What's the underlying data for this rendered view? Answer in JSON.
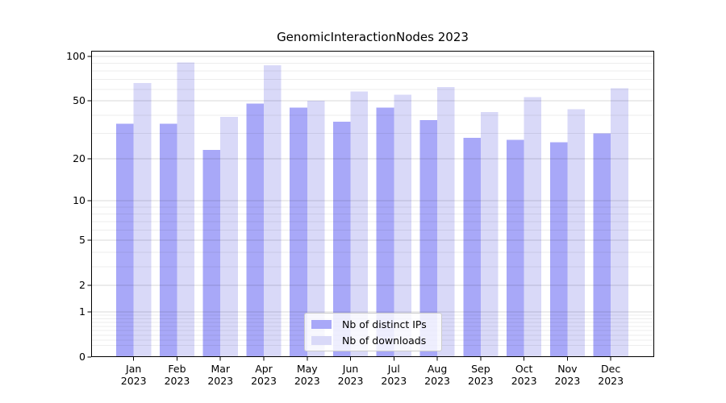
{
  "chart_data": {
    "type": "bar",
    "title": "GenomicInteractionNodes 2023",
    "year_label": "2023",
    "categories": [
      "Jan",
      "Feb",
      "Mar",
      "Apr",
      "May",
      "Jun",
      "Jul",
      "Aug",
      "Sep",
      "Oct",
      "Nov",
      "Dec"
    ],
    "series": [
      {
        "name": "Nb of distinct IPs",
        "color": "#a8a8f8",
        "values": [
          35,
          35,
          23,
          48,
          45,
          36,
          45,
          37,
          28,
          27,
          26,
          30
        ]
      },
      {
        "name": "Nb of downloads",
        "color": "#d9d9f8",
        "values": [
          66,
          91,
          39,
          87,
          50,
          58,
          55,
          62,
          42,
          53,
          44,
          61
        ]
      }
    ],
    "y_scale": "log1p",
    "ylim": [
      0,
      109
    ],
    "y_ticks": [
      0,
      1,
      2,
      5,
      10,
      20,
      50,
      100
    ],
    "y_minor_ticks": [
      0.2,
      0.3,
      0.4,
      0.5,
      0.6,
      0.7,
      0.8,
      0.9,
      3,
      4,
      6,
      7,
      8,
      9,
      30,
      40,
      60,
      70,
      80,
      90
    ],
    "grid": true,
    "grid_major_color": "rgba(0,0,0,0.15)",
    "grid_minor_color": "rgba(0,0,0,0.07)",
    "axis_color": "#000000",
    "legend": {
      "position": "lower center",
      "entries": [
        "Nb of distinct IPs",
        "Nb of downloads"
      ]
    }
  }
}
